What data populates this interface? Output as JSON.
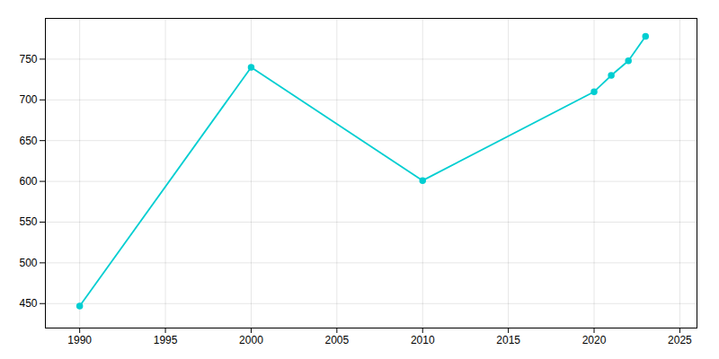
{
  "chart_data": {
    "type": "line",
    "x": [
      1990,
      2000,
      2010,
      2020,
      2021,
      2022,
      2023
    ],
    "values": [
      447,
      740,
      601,
      710,
      730,
      748,
      778
    ],
    "color": "#00CED1",
    "marker": "circle",
    "xlim": [
      1988,
      2026
    ],
    "xticks": [
      1990,
      1995,
      2000,
      2005,
      2010,
      2015,
      2020,
      2025
    ],
    "ylim": [
      420,
      800
    ],
    "yticks": [
      450,
      500,
      550,
      600,
      650,
      700,
      750
    ],
    "grid": true
  }
}
